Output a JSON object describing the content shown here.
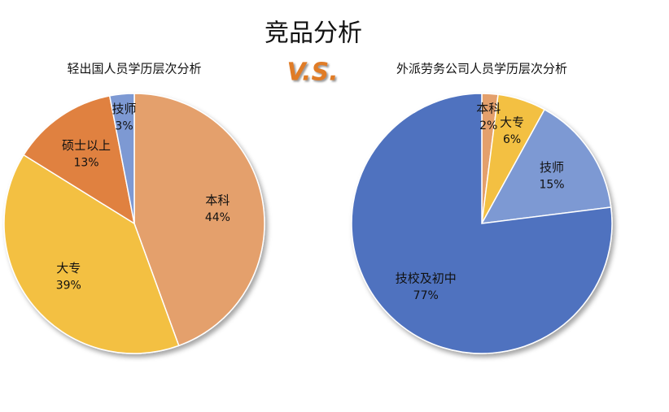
{
  "title": "竞品分析",
  "vs_label": "V.S.",
  "chart_data": [
    {
      "type": "pie",
      "title": "轻出国人员学历层次分析",
      "categories": [
        "本科",
        "大专",
        "硕士以上",
        "技师"
      ],
      "values": [
        44,
        39,
        13,
        3
      ],
      "value_labels": [
        "44%",
        "39%",
        "13%",
        "3%"
      ],
      "colors": [
        "#e4a06c",
        "#f3c042",
        "#e08140",
        "#7d99d3"
      ]
    },
    {
      "type": "pie",
      "title": "外派劳务公司人员学历层次分析",
      "categories": [
        "本科",
        "大专",
        "技师",
        "技校及初中"
      ],
      "values": [
        2,
        6,
        15,
        77
      ],
      "value_labels": [
        "2%",
        "6%",
        "15%",
        "77%"
      ],
      "colors": [
        "#e4a06c",
        "#f3c042",
        "#7d99d3",
        "#4f72bf"
      ]
    }
  ]
}
